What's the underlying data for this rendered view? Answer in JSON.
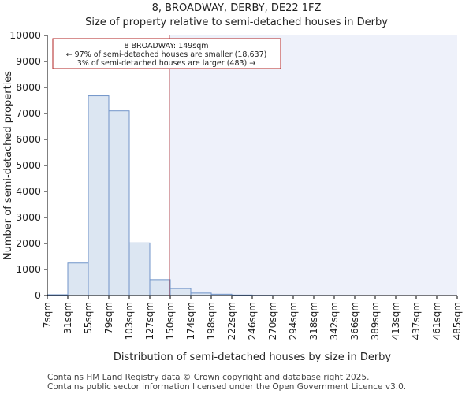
{
  "header": {
    "title": "8, BROADWAY, DERBY, DE22 1FZ",
    "subtitle": "Size of property relative to semi-detached houses in Derby"
  },
  "chart_data": {
    "type": "bar",
    "title": "8, BROADWAY, DERBY, DE22 1FZ",
    "subtitle": "Size of property relative to semi-detached houses in Derby",
    "xlabel": "Distribution of semi-detached houses by size in Derby",
    "ylabel": "Number of semi-detached properties",
    "ylim": [
      0,
      10000
    ],
    "yticks": [
      0,
      1000,
      2000,
      3000,
      4000,
      5000,
      6000,
      7000,
      8000,
      9000,
      10000
    ],
    "bin_edges": [
      7,
      31,
      55,
      79,
      103,
      127,
      150,
      174,
      198,
      222,
      246,
      270,
      294,
      318,
      342,
      366,
      389,
      413,
      437,
      461,
      485
    ],
    "tick_labels": [
      "7sqm",
      "31sqm",
      "55sqm",
      "79sqm",
      "103sqm",
      "127sqm",
      "150sqm",
      "174sqm",
      "198sqm",
      "222sqm",
      "246sqm",
      "270sqm",
      "294sqm",
      "318sqm",
      "342sqm",
      "366sqm",
      "389sqm",
      "413sqm",
      "437sqm",
      "461sqm",
      "485sqm"
    ],
    "values": [
      30,
      1250,
      7680,
      7100,
      2020,
      610,
      270,
      95,
      50,
      20,
      8,
      4,
      2,
      1,
      1,
      0,
      0,
      0,
      0,
      0
    ],
    "property_marker": {
      "value": 149,
      "color": "#b22222"
    },
    "annotation": {
      "line1": "8 BROADWAY: 149sqm",
      "line2": "← 97% of semi-detached houses are smaller (18,637)",
      "line3": "3% of semi-detached houses are larger (483) →"
    },
    "colors": {
      "bar_fill": "#dce6f2",
      "bar_stroke": "#6f93c8",
      "highlight_bg": "#eef1fa",
      "annotation_border": "#b22222"
    },
    "grid": false
  },
  "footer": {
    "line1": "Contains HM Land Registry data © Crown copyright and database right 2025.",
    "line2": "Contains public sector information licensed under the Open Government Licence v3.0."
  }
}
